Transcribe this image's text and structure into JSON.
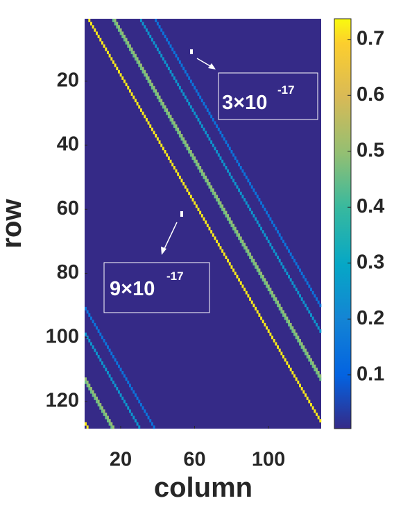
{
  "chart_data": {
    "type": "heatmap",
    "xlabel": "column",
    "ylabel": "row",
    "xlim": [
      0.5,
      128.5
    ],
    "ylim": [
      0.5,
      128.5
    ],
    "xticks": [
      20,
      60,
      100
    ],
    "yticks": [
      20,
      40,
      60,
      80,
      100,
      120
    ],
    "size": 128,
    "background": 0,
    "bands": [
      {
        "offset": 2,
        "value": 0.72
      },
      {
        "offset": 15,
        "value": 0.45
      },
      {
        "offset": 16,
        "value": 0.5
      },
      {
        "offset": 30,
        "value": 0.25
      },
      {
        "offset": 38,
        "value": 0.15
      }
    ],
    "clim": [
      0.004,
      0.737
    ],
    "colorbar_ticks": [
      0.1,
      0.2,
      0.3,
      0.4,
      0.5,
      0.6,
      0.7
    ],
    "annotations": [
      {
        "text": "3×10",
        "exponent": "-17"
      },
      {
        "text": "9×10",
        "exponent": "-17"
      }
    ]
  }
}
